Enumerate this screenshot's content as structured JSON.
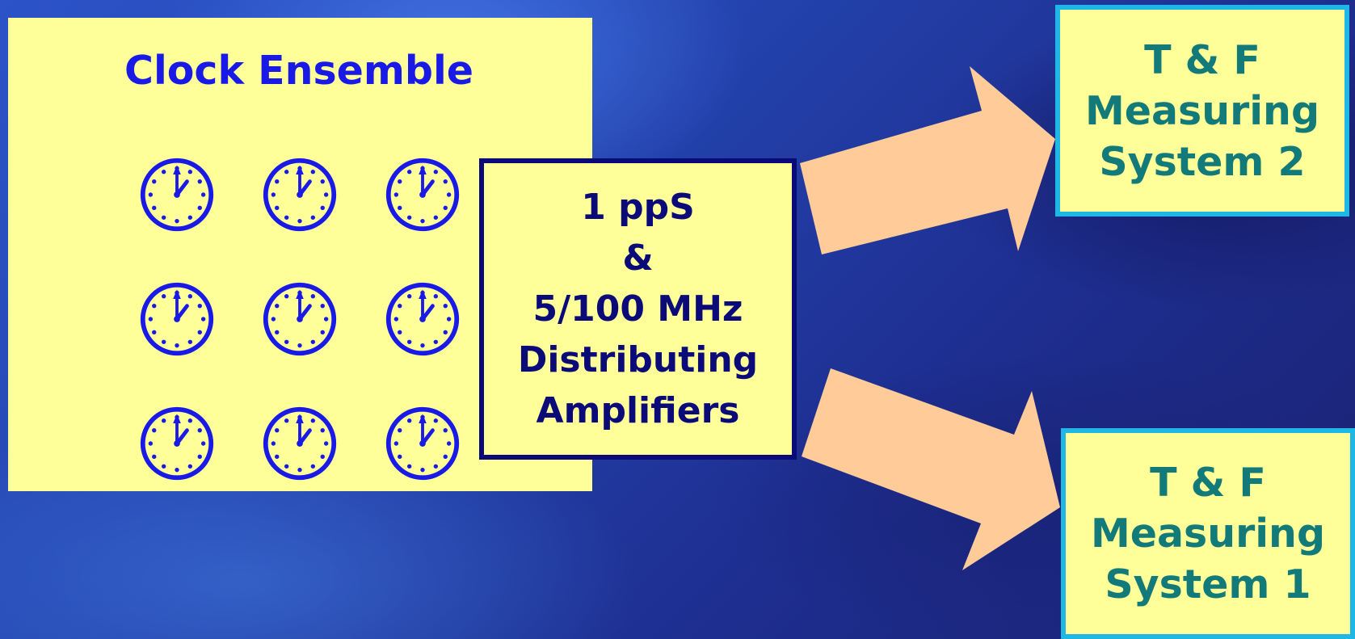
{
  "ensemble": {
    "title": "Clock Ensemble",
    "clock_count": 9,
    "icon": "clock-icon"
  },
  "distribution": {
    "lines": [
      "1 ppS",
      "&",
      "5/100 MHz",
      "Distributing",
      "Amplifiers"
    ]
  },
  "systems": [
    {
      "lines": [
        "T & F",
        "Measuring",
        "System 2"
      ]
    },
    {
      "lines": [
        "T & F",
        "Measuring",
        "System 1"
      ]
    }
  ],
  "colors": {
    "box_fill": "#ffff99",
    "ensemble_title": "#1a1ae6",
    "clock_stroke": "#1a1ae6",
    "amp_border": "#0a0a78",
    "system_border": "#1fb7e6",
    "system_text": "#127a78",
    "arrow_fill": "#ffcc99"
  }
}
